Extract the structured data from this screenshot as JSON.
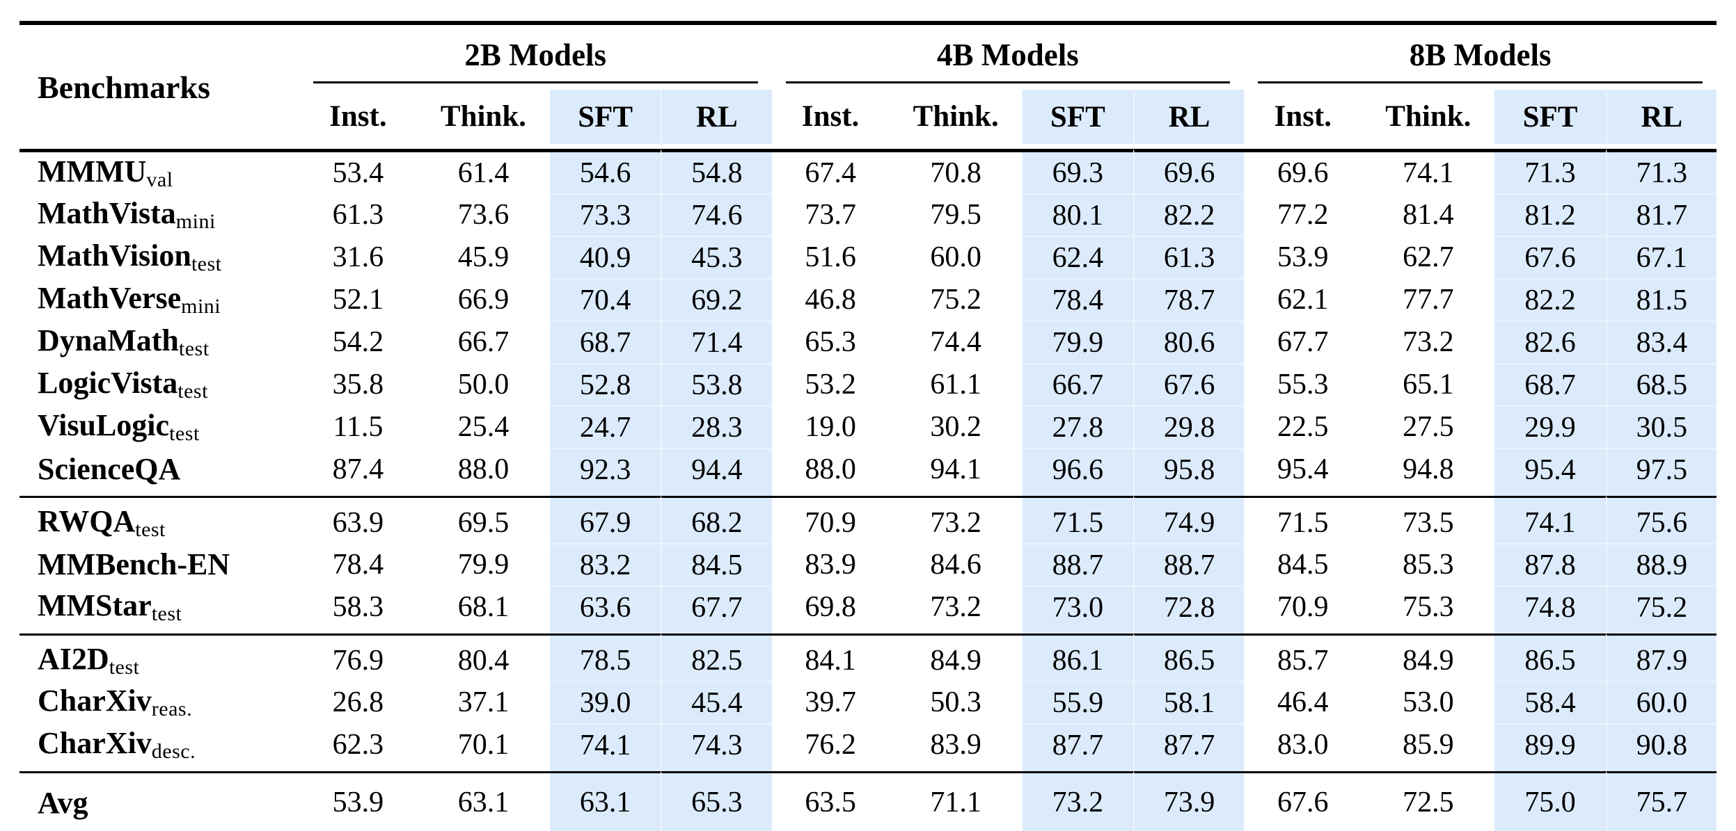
{
  "table": {
    "first_column_header": "Benchmarks",
    "highlight_color": "#dcebfb",
    "groups": [
      {
        "label": "2B Models",
        "subcols": [
          "Inst.",
          "Think.",
          "SFT",
          "RL"
        ]
      },
      {
        "label": "4B Models",
        "subcols": [
          "Inst.",
          "Think.",
          "SFT",
          "RL"
        ]
      },
      {
        "label": "8B Models",
        "subcols": [
          "Inst.",
          "Think.",
          "SFT",
          "RL"
        ]
      }
    ],
    "sections": [
      {
        "rows": [
          {
            "name": "MMMU",
            "sub": "val",
            "values": [
              "53.4",
              "61.4",
              "54.6",
              "54.8",
              "67.4",
              "70.8",
              "69.3",
              "69.6",
              "69.6",
              "74.1",
              "71.3",
              "71.3"
            ]
          },
          {
            "name": "MathVista",
            "sub": "mini",
            "values": [
              "61.3",
              "73.6",
              "73.3",
              "74.6",
              "73.7",
              "79.5",
              "80.1",
              "82.2",
              "77.2",
              "81.4",
              "81.2",
              "81.7"
            ]
          },
          {
            "name": "MathVision",
            "sub": "test",
            "values": [
              "31.6",
              "45.9",
              "40.9",
              "45.3",
              "51.6",
              "60.0",
              "62.4",
              "61.3",
              "53.9",
              "62.7",
              "67.6",
              "67.1"
            ]
          },
          {
            "name": "MathVerse",
            "sub": "mini",
            "values": [
              "52.1",
              "66.9",
              "70.4",
              "69.2",
              "46.8",
              "75.2",
              "78.4",
              "78.7",
              "62.1",
              "77.7",
              "82.2",
              "81.5"
            ]
          },
          {
            "name": "DynaMath",
            "sub": "test",
            "values": [
              "54.2",
              "66.7",
              "68.7",
              "71.4",
              "65.3",
              "74.4",
              "79.9",
              "80.6",
              "67.7",
              "73.2",
              "82.6",
              "83.4"
            ]
          },
          {
            "name": "LogicVista",
            "sub": "test",
            "values": [
              "35.8",
              "50.0",
              "52.8",
              "53.8",
              "53.2",
              "61.1",
              "66.7",
              "67.6",
              "55.3",
              "65.1",
              "68.7",
              "68.5"
            ]
          },
          {
            "name": "VisuLogic",
            "sub": "test",
            "values": [
              "11.5",
              "25.4",
              "24.7",
              "28.3",
              "19.0",
              "30.2",
              "27.8",
              "29.8",
              "22.5",
              "27.5",
              "29.9",
              "30.5"
            ]
          },
          {
            "name": "ScienceQA",
            "sub": "",
            "values": [
              "87.4",
              "88.0",
              "92.3",
              "94.4",
              "88.0",
              "94.1",
              "96.6",
              "95.8",
              "95.4",
              "94.8",
              "95.4",
              "97.5"
            ]
          }
        ]
      },
      {
        "rows": [
          {
            "name": "RWQA",
            "sub": "test",
            "values": [
              "63.9",
              "69.5",
              "67.9",
              "68.2",
              "70.9",
              "73.2",
              "71.5",
              "74.9",
              "71.5",
              "73.5",
              "74.1",
              "75.6"
            ]
          },
          {
            "name": "MMBench-EN",
            "sub": "",
            "values": [
              "78.4",
              "79.9",
              "83.2",
              "84.5",
              "83.9",
              "84.6",
              "88.7",
              "88.7",
              "84.5",
              "85.3",
              "87.8",
              "88.9"
            ]
          },
          {
            "name": "MMStar",
            "sub": "test",
            "values": [
              "58.3",
              "68.1",
              "63.6",
              "67.7",
              "69.8",
              "73.2",
              "73.0",
              "72.8",
              "70.9",
              "75.3",
              "74.8",
              "75.2"
            ]
          }
        ]
      },
      {
        "rows": [
          {
            "name": "AI2D",
            "sub": "test",
            "values": [
              "76.9",
              "80.4",
              "78.5",
              "82.5",
              "84.1",
              "84.9",
              "86.1",
              "86.5",
              "85.7",
              "84.9",
              "86.5",
              "87.9"
            ]
          },
          {
            "name": "CharXiv",
            "sub": "reas.",
            "values": [
              "26.8",
              "37.1",
              "39.0",
              "45.4",
              "39.7",
              "50.3",
              "55.9",
              "58.1",
              "46.4",
              "53.0",
              "58.4",
              "60.0"
            ]
          },
          {
            "name": "CharXiv",
            "sub": "desc.",
            "values": [
              "62.3",
              "70.1",
              "74.1",
              "74.3",
              "76.2",
              "83.9",
              "87.7",
              "87.7",
              "83.0",
              "85.9",
              "89.9",
              "90.8"
            ]
          }
        ]
      }
    ],
    "avg_row": {
      "name": "Avg",
      "sub": "",
      "values": [
        "53.9",
        "63.1",
        "63.1",
        "65.3",
        "63.5",
        "71.1",
        "73.2",
        "73.9",
        "67.6",
        "72.5",
        "75.0",
        "75.7"
      ]
    }
  }
}
